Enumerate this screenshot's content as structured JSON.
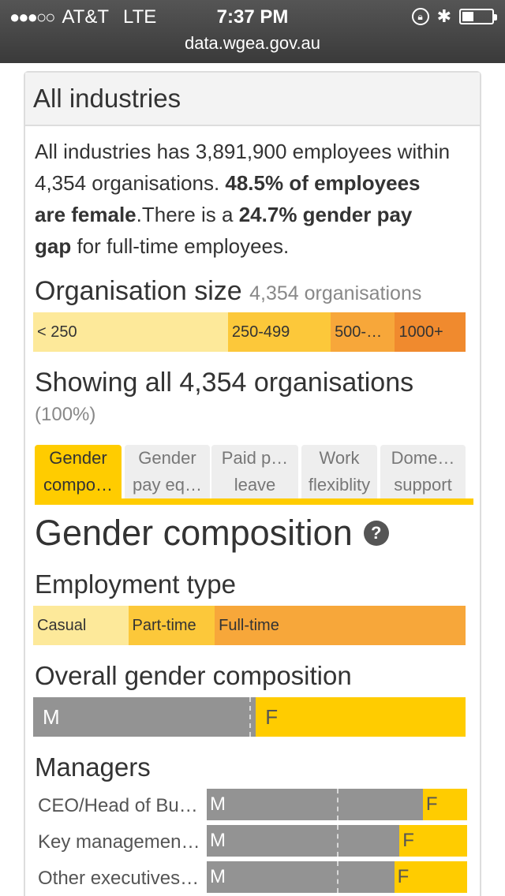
{
  "status_bar": {
    "signal": "●●●○○",
    "carrier": "AT&T",
    "network": "LTE",
    "time": "7:37 PM",
    "bluetooth_symbol": "✱",
    "url": "data.wgea.gov.au"
  },
  "card": {
    "title": "All industries",
    "summary": {
      "p1": "All industries has 3,891,900 employees within 4,354 organisations. ",
      "b1": "48.5% of employees are female",
      "p2": ".There is a ",
      "b2": "24.7% gender pay gap",
      "p3": " for full-time employees."
    }
  },
  "org_size": {
    "heading": "Organisation size",
    "subheading": "4,354 organisations",
    "segments": [
      {
        "label": "< 250",
        "share": 0.455,
        "color": "#fde99a"
      },
      {
        "label": "250-499",
        "share": 0.24,
        "color": "#fcc83a"
      },
      {
        "label": "500-…",
        "share": 0.15,
        "color": "#f7a73a"
      },
      {
        "label": "1000+",
        "share": 0.165,
        "color": "#f08a2e"
      }
    ]
  },
  "showing": {
    "text": "Showing all 4,354 organisations",
    "percent": "(100%)"
  },
  "tabs": [
    {
      "line1": "Gender",
      "line2": "compo…",
      "active": true
    },
    {
      "line1": "Gender",
      "line2": "pay eq…",
      "active": false
    },
    {
      "line1": "Paid p…",
      "line2": "leave",
      "active": false
    },
    {
      "line1": "Work",
      "line2": "flexiblity",
      "active": false
    },
    {
      "line1": "Dome…",
      "line2": "support",
      "active": false
    }
  ],
  "gender_composition": {
    "heading": "Gender composition",
    "help_symbol": "?",
    "employment_type": {
      "heading": "Employment type",
      "segments": [
        {
          "label": "Casual",
          "share": 0.22,
          "color": "#fde99a"
        },
        {
          "label": "Part-time",
          "share": 0.2,
          "color": "#fcc83a"
        },
        {
          "label": "Full-time",
          "share": 0.58,
          "color": "#f7a73a"
        }
      ]
    },
    "overall": {
      "heading": "Overall gender composition",
      "male_label": "M",
      "female_label": "F",
      "male_share": 0.515,
      "female_share": 0.485
    },
    "managers": {
      "heading": "Managers",
      "rows": [
        {
          "label": "CEO/Head of Bu…",
          "male_label": "M",
          "female_label": "F",
          "male_share": 0.83
        },
        {
          "label": "Key managemen…",
          "male_label": "M",
          "female_label": "F",
          "male_share": 0.74
        },
        {
          "label": "Other executives…",
          "male_label": "M",
          "female_label": "F",
          "male_share": 0.72
        }
      ]
    }
  }
}
